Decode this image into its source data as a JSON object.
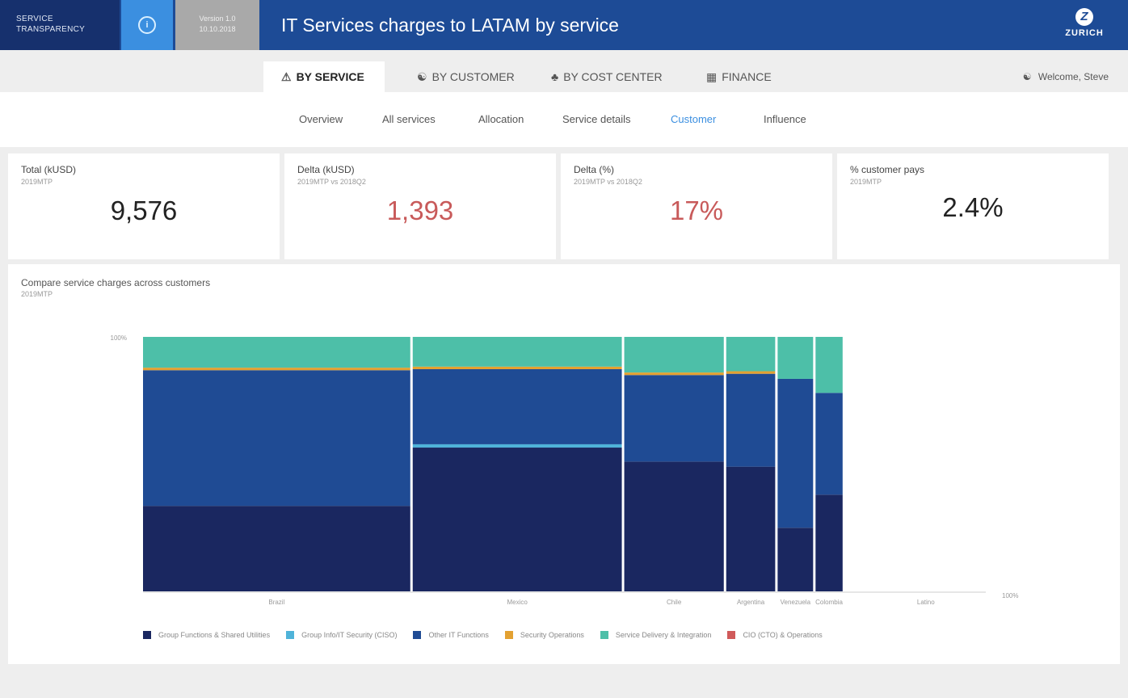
{
  "header": {
    "brand": "Service Transparency",
    "info_icon": "info-circle-icon",
    "version_line1": "Version 1.0",
    "version_line2": "10.10.2018",
    "title": "IT Services charges to LATAM by service",
    "logo_text": "ZURICH",
    "logo_mark": "Z"
  },
  "nav": {
    "tabs": [
      {
        "label": "BY SERVICE",
        "icon": "warning-triangle-icon",
        "glyph": "⚠",
        "active": true
      },
      {
        "label": "BY CUSTOMER",
        "icon": "user-icon",
        "glyph": "👤",
        "active": false
      },
      {
        "label": "BY COST CENTER",
        "icon": "org-chart-icon",
        "glyph": "♣",
        "active": false
      },
      {
        "label": "FINANCE",
        "icon": "calculator-icon",
        "glyph": "▦",
        "active": false
      }
    ],
    "welcome": "Welcome, Steve",
    "welcome_icon_glyph": "👤"
  },
  "subnav": {
    "items": [
      "Overview",
      "All services",
      "Allocation",
      "Service details",
      "Customer",
      "Influence"
    ],
    "active": "Customer"
  },
  "kpis": [
    {
      "label": "Total (kUSD)",
      "sub": "2019MTP",
      "value": "9,576",
      "negative": false
    },
    {
      "label": "Delta (kUSD)",
      "sub": "2019MTP vs 2018Q2",
      "value": "1,393",
      "negative": true
    },
    {
      "label": "Delta (%)",
      "sub": "2019MTP vs 2018Q2",
      "value": "17%",
      "negative": true
    },
    {
      "label": "% customer pays",
      "sub": "2019MTP",
      "value": "2.4%",
      "negative": false
    }
  ],
  "chart_panel": {
    "title": "Compare service charges across customers",
    "subtitle": "2019MTP"
  },
  "chart_data": {
    "type": "bar",
    "subtype": "marimekko",
    "title": "Compare service charges across customers",
    "subtitle": "2019MTP",
    "y_axis_label_top": "100%",
    "x_axis_label_end": "100%",
    "xlim": [
      0,
      100
    ],
    "ylim": [
      0,
      100
    ],
    "grid": false,
    "legend_position": "bottom",
    "categories": [
      "Brazil",
      "Mexico",
      "Chile",
      "Argentina",
      "Venezuela",
      "Colombia",
      "Latino"
    ],
    "widths_pct": [
      32.0,
      25.1,
      12.1,
      6.1,
      4.5,
      3.5,
      0.0
    ],
    "series": [
      {
        "name": "Group Functions & Shared Utilities",
        "color": "#1a2760",
        "values": [
          33.6,
          56.5,
          51.0,
          49.0,
          25.0,
          38.0,
          0
        ]
      },
      {
        "name": "Group Info/IT Security (CISO)",
        "color": "#4fb3d9",
        "values": [
          0.0,
          1.3,
          0.0,
          0.0,
          0.0,
          0.0,
          0
        ]
      },
      {
        "name": "Other IT Functions",
        "color": "#1f4b94",
        "values": [
          53.3,
          29.5,
          34.0,
          36.5,
          58.5,
          40.0,
          0
        ]
      },
      {
        "name": "Security Operations",
        "color": "#e3a131",
        "values": [
          1.0,
          1.0,
          1.0,
          1.0,
          0.0,
          0.0,
          0
        ]
      },
      {
        "name": "Service Delivery & Integration",
        "color": "#4dbfa8",
        "values": [
          12.1,
          11.7,
          14.0,
          13.5,
          16.5,
          22.0,
          0
        ]
      },
      {
        "name": "CIO (CTO) & Operations",
        "color": "#d05a5a",
        "values": [
          0,
          0,
          0,
          0,
          0,
          0,
          0
        ]
      }
    ]
  }
}
